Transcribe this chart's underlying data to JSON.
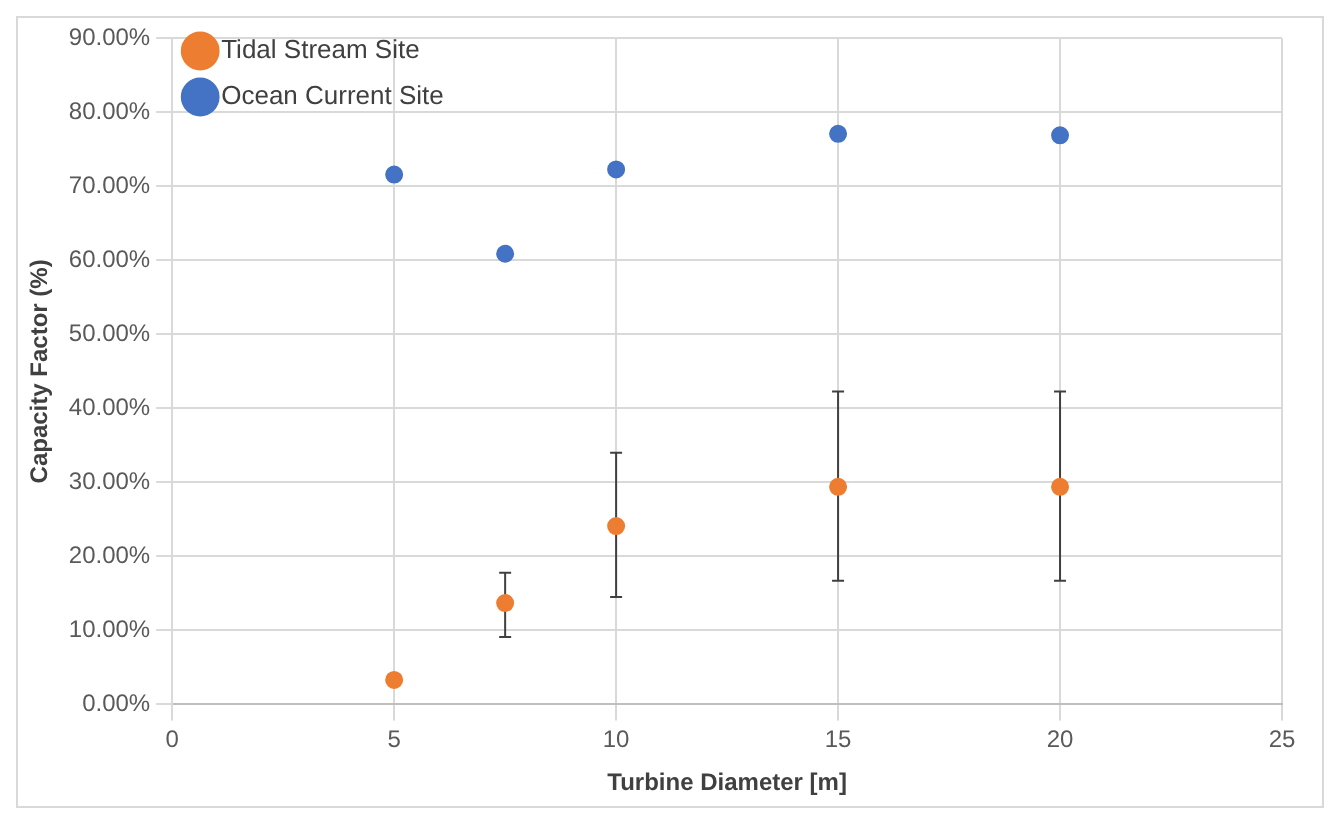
{
  "chart_data": {
    "type": "scatter",
    "xlabel": "Turbine Diameter [m]",
    "ylabel": "Capacity Factor (%)",
    "xlim": [
      0,
      25
    ],
    "xticks": [
      0,
      5,
      10,
      15,
      20,
      25
    ],
    "ylim": [
      0,
      90
    ],
    "yticks": [
      {
        "value": 0,
        "label": "0.00%"
      },
      {
        "value": 10,
        "label": "10.00%"
      },
      {
        "value": 20,
        "label": "20.00%"
      },
      {
        "value": 30,
        "label": "30.00%"
      },
      {
        "value": 40,
        "label": "40.00%"
      },
      {
        "value": 50,
        "label": "50.00%"
      },
      {
        "value": 60,
        "label": "60.00%"
      },
      {
        "value": 70,
        "label": "70.00%"
      },
      {
        "value": 80,
        "label": "80.00%"
      },
      {
        "value": 90,
        "label": "90.00%"
      }
    ],
    "grid": true,
    "legend": "top left",
    "marker": "circle",
    "series": [
      {
        "name": "Tidal Stream Site",
        "color": "#ed7d31",
        "x": [
          5,
          7.5,
          10,
          15,
          20
        ],
        "values": [
          3.3,
          13.7,
          24.1,
          29.4,
          29.4
        ],
        "errors": [
          null,
          [
            9.1,
            17.8
          ],
          [
            14.5,
            34.0
          ],
          [
            16.7,
            42.3
          ],
          [
            16.7,
            42.3
          ]
        ]
      },
      {
        "name": "Ocean Current Site",
        "color": "#4472c4",
        "x": [
          5,
          7.5,
          10,
          15,
          20
        ],
        "values": [
          71.6,
          60.9,
          72.3,
          77.1,
          76.9
        ]
      }
    ]
  }
}
